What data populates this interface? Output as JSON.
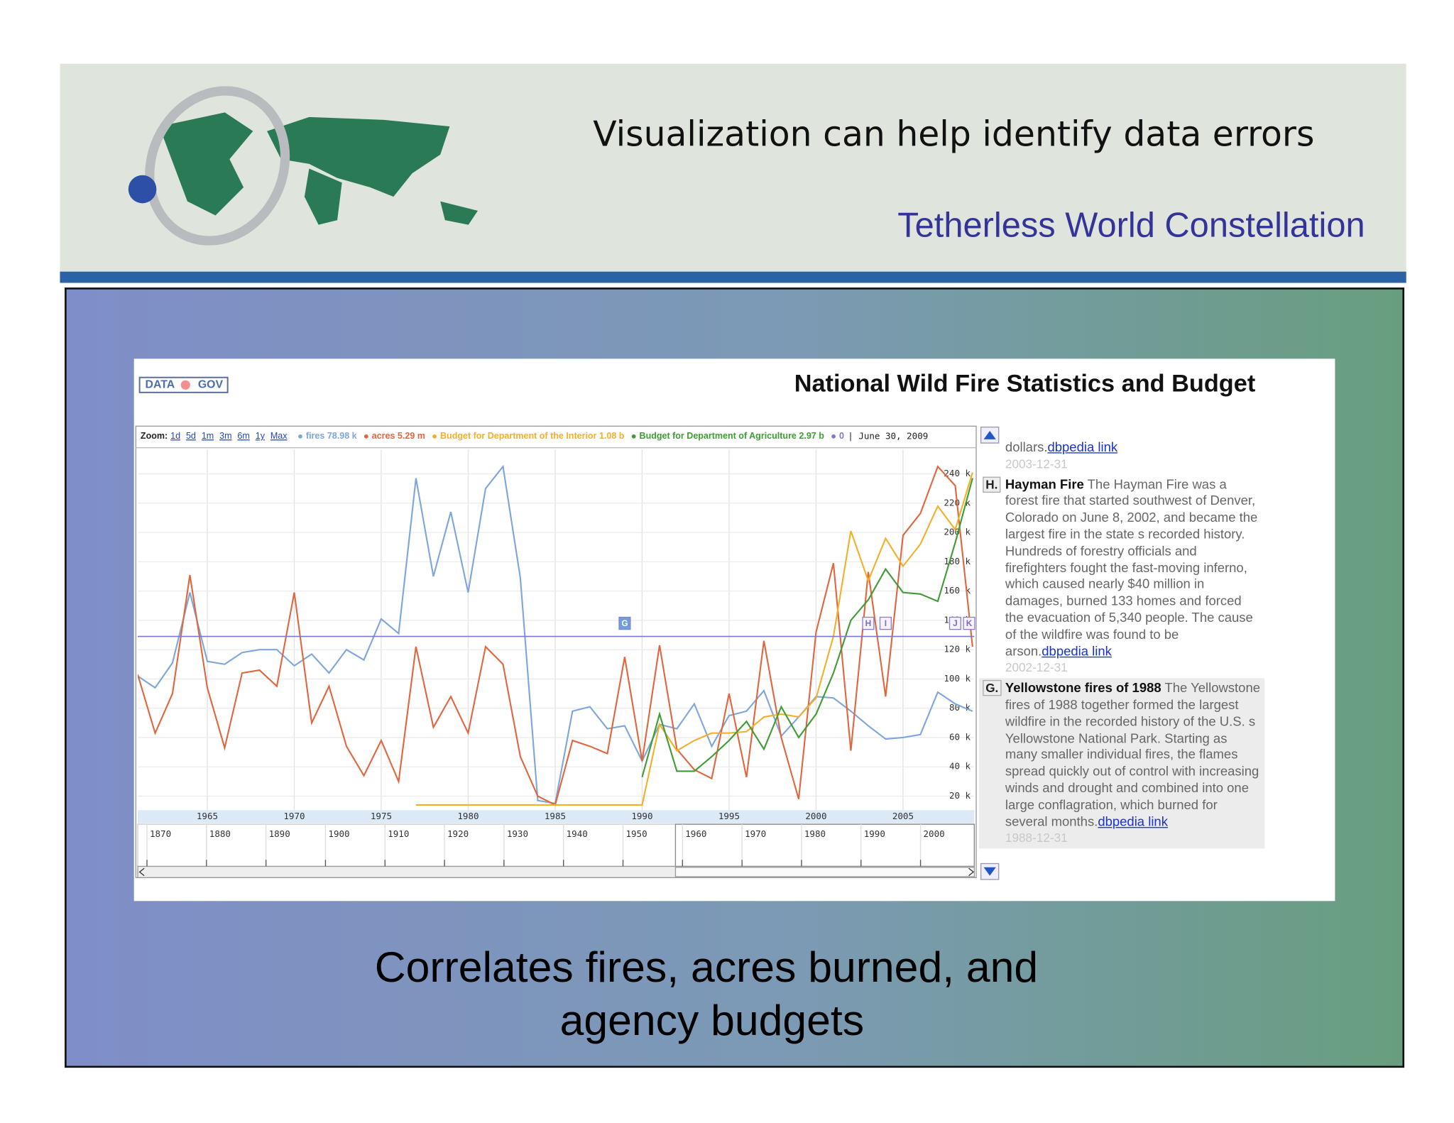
{
  "slide": {
    "title": "Visualization can help identify data errors",
    "subtitle": "Tetherless World Constellation",
    "caption": [
      "Correlates fires, acres burned, and",
      "agency budgets"
    ]
  },
  "chart_data": {
    "type": "line",
    "title": "National Wild Fire Statistics and Budget",
    "source_logo": [
      "DATA",
      "GOV"
    ],
    "zoom_label": "Zoom:",
    "zoom_options": [
      "1d",
      "5d",
      "1m",
      "3m",
      "6m",
      "1y",
      "Max"
    ],
    "date_label": "| June 30, 2009",
    "x": [
      1961,
      1962,
      1963,
      1964,
      1965,
      1966,
      1967,
      1968,
      1969,
      1970,
      1971,
      1972,
      1973,
      1974,
      1975,
      1976,
      1977,
      1978,
      1979,
      1980,
      1981,
      1982,
      1983,
      1984,
      1985,
      1986,
      1987,
      1988,
      1989,
      1990,
      1991,
      1992,
      1993,
      1994,
      1995,
      1996,
      1997,
      1998,
      1999,
      2000,
      2001,
      2002,
      2003,
      2004,
      2005,
      2006,
      2007,
      2008,
      2009
    ],
    "xlim": [
      1961,
      2009.1
    ],
    "xticks": [
      1965,
      1970,
      1975,
      1980,
      1985,
      1990,
      1995,
      2000,
      2005
    ],
    "ylim": [
      10400,
      256600
    ],
    "yticks": [
      {
        "value": 20000,
        "label": "20 k"
      },
      {
        "value": 40000,
        "label": "40 k"
      },
      {
        "value": 60000,
        "label": "60 k"
      },
      {
        "value": 80000,
        "label": "80 k"
      },
      {
        "value": 100000,
        "label": "100 k"
      },
      {
        "value": 120000,
        "label": "120 k"
      },
      {
        "value": 140000,
        "label": "140 k"
      },
      {
        "value": 160000,
        "label": "160 k"
      },
      {
        "value": 180000,
        "label": "180 k"
      },
      {
        "value": 200000,
        "label": "200 k"
      },
      {
        "value": 220000,
        "label": "220 k"
      },
      {
        "value": 240000,
        "label": "240 k"
      }
    ],
    "grid": true,
    "series": [
      {
        "name": "fires",
        "legend_value": "78.98 k",
        "color": "#7ea6dc",
        "values": [
          102000,
          94000,
          111000,
          159000,
          112000,
          110000,
          118000,
          120000,
          120000,
          109000,
          117000,
          104000,
          120000,
          113000,
          141000,
          131000,
          237000,
          170000,
          214000,
          159000,
          230000,
          245000,
          169000,
          17000,
          15000,
          78000,
          81000,
          66000,
          68000,
          44000,
          69000,
          66000,
          83000,
          54000,
          75000,
          78000,
          92000,
          61000,
          74000,
          88000,
          87000,
          78000,
          68000,
          59000,
          60000,
          62000,
          91000,
          83000,
          78000
        ]
      },
      {
        "name": "acres",
        "legend_value": "5.29 m",
        "color": "#e0663f",
        "values": [
          103000,
          63000,
          90000,
          171000,
          94000,
          53000,
          104000,
          106000,
          95000,
          159000,
          70000,
          95000,
          54000,
          34000,
          58000,
          30000,
          122000,
          67000,
          88000,
          63000,
          122000,
          110000,
          47000,
          20000,
          14000,
          58000,
          54000,
          49000,
          115000,
          44000,
          123000,
          52000,
          38000,
          32000,
          90000,
          33000,
          126000,
          60000,
          18000,
          132000,
          179000,
          51000,
          173000,
          88000,
          198000,
          213000,
          245000,
          232000,
          122000
        ]
      },
      {
        "name": "Budget for Department of the Interior",
        "legend_value": "1.08 b",
        "color": "#f2b02a",
        "values": [
          null,
          null,
          null,
          null,
          null,
          null,
          null,
          null,
          null,
          null,
          null,
          null,
          null,
          null,
          null,
          null,
          14000,
          14000,
          14000,
          14000,
          14000,
          14000,
          14000,
          14000,
          14000,
          14000,
          14000,
          14000,
          14000,
          14000,
          69000,
          51000,
          58000,
          63000,
          63000,
          64000,
          74000,
          76000,
          74000,
          87000,
          129000,
          201000,
          167000,
          196000,
          177000,
          192000,
          218000,
          202000,
          241000
        ]
      },
      {
        "name": "Budget for Department of Agriculture",
        "legend_value": "2.97 b",
        "color": "#3f9c34",
        "values": [
          null,
          null,
          null,
          null,
          null,
          null,
          null,
          null,
          null,
          null,
          null,
          null,
          null,
          null,
          null,
          null,
          null,
          null,
          null,
          null,
          null,
          null,
          null,
          null,
          null,
          null,
          null,
          null,
          null,
          33000,
          76000,
          37000,
          37000,
          47000,
          58000,
          71000,
          52000,
          81000,
          60000,
          76000,
          104000,
          140000,
          154000,
          175000,
          159000,
          158000,
          153000,
          193000,
          237000
        ]
      }
    ],
    "reference_line": {
      "name": "0",
      "value": 129000,
      "color": "#7d78c9"
    },
    "flags": [
      {
        "label": "G",
        "x": 1989
      },
      {
        "label": "H",
        "x": 2003
      },
      {
        "label": "I",
        "x": 2004
      },
      {
        "label": "J",
        "x": 2008
      },
      {
        "label": "K",
        "x": 2008.8
      }
    ],
    "overview_xlim": [
      1867.5,
      2008.1
    ],
    "overview_ticks": [
      1870,
      1880,
      1890,
      1900,
      1910,
      1920,
      1930,
      1940,
      1950,
      1960,
      1970,
      1980,
      1990,
      2000
    ],
    "annotations": [
      {
        "text": "dollars.",
        "link": "dbpedia link",
        "date": "2003-12-31"
      },
      {
        "label": "H.",
        "title": "Hayman Fire",
        "text": "The Hayman Fire was a forest fire that started southwest of Denver, Colorado on June 8, 2002, and became the largest fire in the state s recorded history. Hundreds of forestry officials and firefighters fought the fast-moving inferno, which caused nearly $40 million in damages, burned 133 homes and forced the evacuation of 5,340 people. The cause of the wildfire was found to be arson.",
        "link": "dbpedia link",
        "date": "2002-12-31"
      },
      {
        "label": "G.",
        "title": "Yellowstone fires of 1988",
        "text": "The Yellowstone fires of 1988 together formed the largest wildfire in the recorded history of the U.S. s Yellowstone National Park. Starting as many smaller individual fires, the flames spread quickly out of control with increasing winds and drought and combined into one large conflagration, which burned for several months.",
        "link": "dbpedia link",
        "date": "1988-12-31"
      }
    ]
  }
}
